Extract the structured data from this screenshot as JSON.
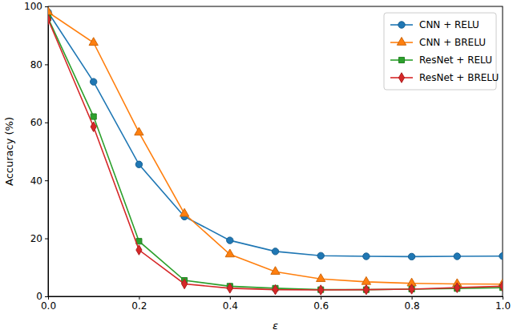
{
  "chart_data": {
    "type": "line",
    "x_label": "ε",
    "y_label": "Accuracy (%)",
    "x": [
      0.0,
      0.1,
      0.2,
      0.3,
      0.4,
      0.5,
      0.6,
      0.7,
      0.8,
      0.9,
      1.0
    ],
    "series": [
      {
        "name": "CNN + RELU",
        "color": "#1f77b4",
        "marker": "circle",
        "values": [
          98,
          74,
          45.5,
          27.5,
          19.3,
          15.5,
          14,
          13.8,
          13.7,
          13.8,
          13.9
        ]
      },
      {
        "name": "CNN + BRELU",
        "color": "#ff7f0e",
        "marker": "triangle",
        "values": [
          98,
          87.5,
          56.5,
          28.5,
          14.5,
          8.5,
          6,
          5,
          4.5,
          4.3,
          4.2
        ]
      },
      {
        "name": "ResNet + RELU",
        "color": "#2ca02c",
        "marker": "square",
        "values": [
          96,
          62,
          19,
          5.5,
          3.5,
          2.8,
          2.3,
          2.3,
          2.5,
          2.7,
          3
        ]
      },
      {
        "name": "ResNet + BRELU",
        "color": "#d62728",
        "marker": "diamond",
        "values": [
          95.5,
          58.5,
          16,
          4.3,
          2.8,
          2.3,
          2.2,
          2.3,
          2.5,
          3.0,
          3.5
        ]
      }
    ],
    "xlim": [
      0,
      1
    ],
    "xticks": [
      {
        "value": 0,
        "label": "0.0"
      },
      {
        "value": 0.2,
        "label": "0.2"
      },
      {
        "value": 0.4,
        "label": "0.4"
      },
      {
        "value": 0.6,
        "label": "0.6"
      },
      {
        "value": 0.8,
        "label": "0.8"
      },
      {
        "value": 1,
        "label": "1.0"
      }
    ],
    "ylim": [
      0,
      100
    ],
    "yticks": [
      0,
      20,
      40,
      60,
      80,
      100
    ],
    "grid": false,
    "legend": "upper right"
  }
}
